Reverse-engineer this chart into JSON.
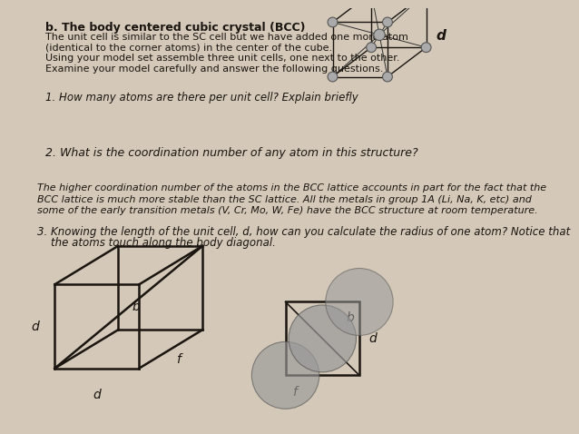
{
  "bg_color": "#d4c9b8",
  "text_color": "#1a1510",
  "title": "b. The body centered cubic crystal (BCC)",
  "para1_lines": [
    "The unit cell is similar to the SC cell but we have added one more atom",
    "(identical to the corner atoms) in the center of the cube.",
    "Using your model set assemble three unit cells, one next to the other.",
    "Examine your model carefully and answer the following questions."
  ],
  "q1": "1. How many atoms are there per unit cell? Explain briefly",
  "q2": "2. What is the coordination number of any atom in this structure?",
  "info_lines": [
    "The higher coordination number of the atoms in the BCC lattice accounts in part for the fact that the",
    "BCC lattice is much more stable than the SC lattice. All the metals in group 1A (Li, Na, K, etc) and",
    "some of the early transition metals (V, Cr, Mo, W, Fe) have the BCC structure at room temperature."
  ],
  "q3_line1": "3. Knowing the length of the unit cell, d, how can you calculate the radius of one atom? Notice that",
  "q3_line2": "    the atoms touch along the body diagonal.",
  "atom_color": "#aaaaaa",
  "atom_edge_color": "#555555",
  "cube_color": "#1a1510",
  "sphere_color": "#999999"
}
